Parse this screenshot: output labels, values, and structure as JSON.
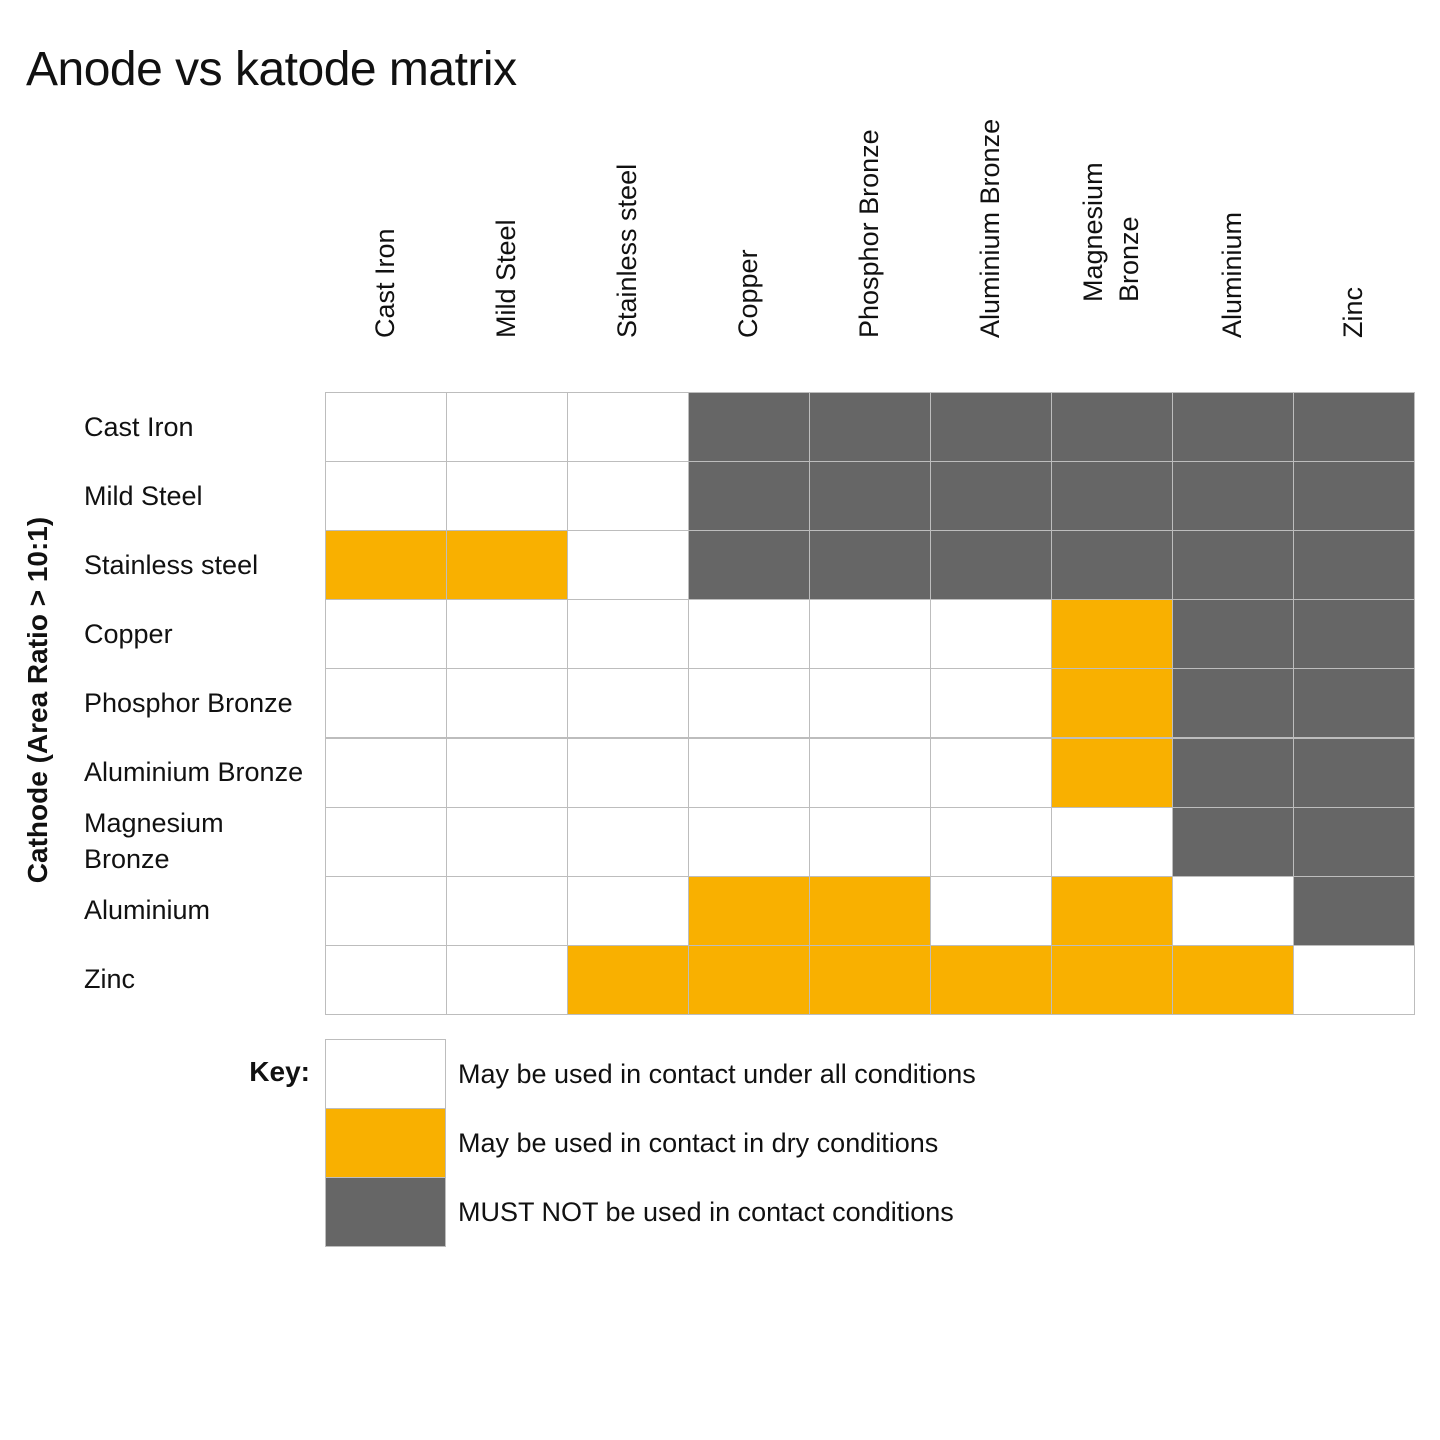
{
  "title": "Anode vs katode matrix",
  "chart_data": {
    "type": "heatmap",
    "title": "Anode vs katode matrix",
    "ylabel": "Cathode (Area Ratio > 10:1)",
    "columns": [
      "Cast Iron",
      "Mild Steel",
      "Stainless steel",
      "Copper",
      "Phosphor Bronze",
      "Aluminium Bronze",
      "Magnesium\nBronze",
      "Aluminium",
      "Zinc"
    ],
    "rows": [
      "Cast Iron",
      "Mild Steel",
      "Stainless steel",
      "Copper",
      "Phosphor Bronze",
      "Aluminium Bronze",
      "Magnesium\nBronze",
      "Aluminium",
      "Zinc"
    ],
    "categories": {
      "0": {
        "label": "May be used in contact under all conditions",
        "color": "#ffffff"
      },
      "1": {
        "label": "May be used in contact in dry conditions",
        "color": "#f9b000"
      },
      "2": {
        "label": "MUST NOT be used in contact conditions",
        "color": "#666666"
      }
    },
    "values": [
      [
        0,
        0,
        0,
        2,
        2,
        2,
        2,
        2,
        2
      ],
      [
        0,
        0,
        0,
        2,
        2,
        2,
        2,
        2,
        2
      ],
      [
        1,
        1,
        0,
        2,
        2,
        2,
        2,
        2,
        2
      ],
      [
        0,
        0,
        0,
        0,
        0,
        0,
        1,
        2,
        2
      ],
      [
        0,
        0,
        0,
        0,
        0,
        0,
        1,
        2,
        2
      ],
      [
        0,
        0,
        0,
        0,
        0,
        0,
        1,
        2,
        2
      ],
      [
        0,
        0,
        0,
        0,
        0,
        0,
        0,
        2,
        2
      ],
      [
        0,
        0,
        0,
        1,
        1,
        0,
        1,
        0,
        2
      ],
      [
        0,
        0,
        1,
        1,
        1,
        1,
        1,
        1,
        0
      ]
    ]
  },
  "key": {
    "title": "Key:",
    "entries": [
      {
        "label": "May be used in contact under all conditions",
        "color": "#ffffff"
      },
      {
        "label": "May be used in contact in dry conditions",
        "color": "#f9b000"
      },
      {
        "label": "MUST NOT be used in contact conditions",
        "color": "#666666"
      }
    ]
  }
}
